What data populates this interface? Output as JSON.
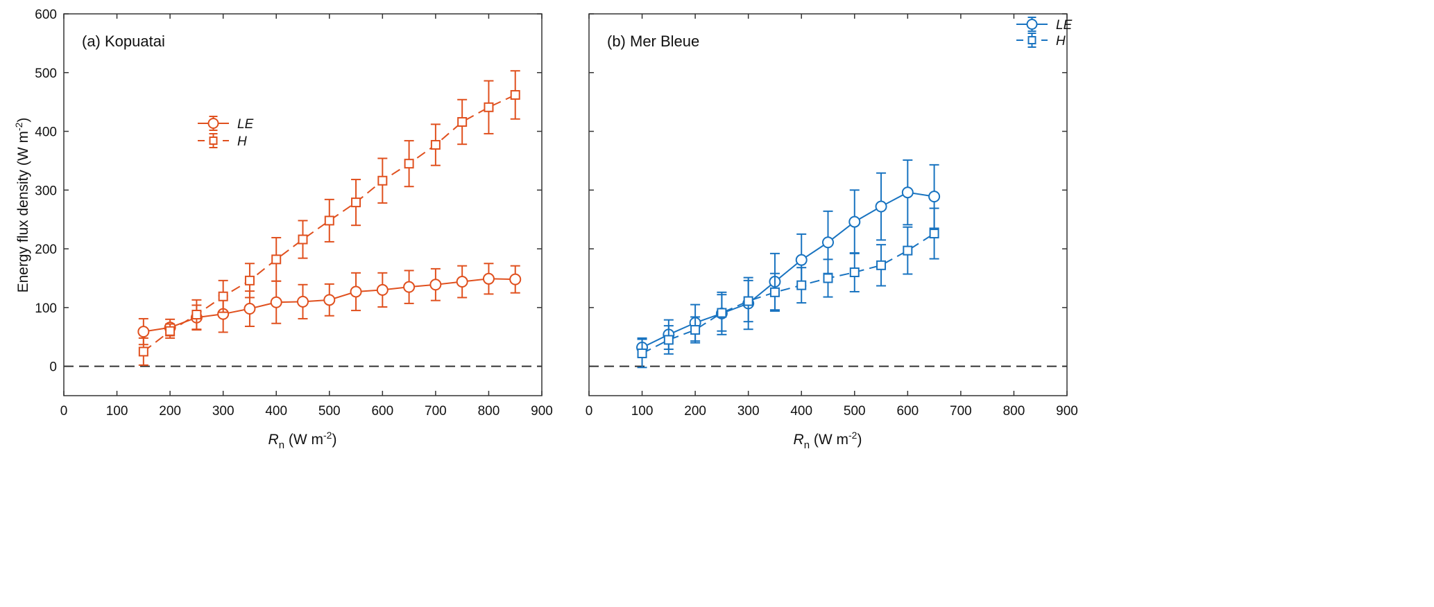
{
  "colors": {
    "kopuatai": "#e0501e",
    "merbleue": "#1873c0",
    "axis": "#333333"
  },
  "y_axis_label": "Energy flux density (W m",
  "y_axis_label_sup": "-2",
  "y_axis_label_end": ")",
  "chart_data": [
    {
      "type": "line",
      "title": "(a) Kopuatai",
      "xlabel_main": "R",
      "xlabel_sub": "n",
      "xlabel_units": " (W m",
      "xlabel_sup": "-2",
      "xlabel_end": ")",
      "xlim": [
        0,
        900
      ],
      "ylim": [
        -50,
        600
      ],
      "xticks": [
        0,
        100,
        200,
        300,
        400,
        500,
        600,
        700,
        800,
        900
      ],
      "yticks": [
        0,
        100,
        200,
        300,
        400,
        500,
        600
      ],
      "reference_line_y": 0,
      "legend_position": "upper-center",
      "series": [
        {
          "name": "LE",
          "marker": "circle",
          "linestyle": "solid",
          "x": [
            150,
            200,
            250,
            300,
            350,
            400,
            450,
            500,
            550,
            600,
            650,
            700,
            750,
            800,
            850
          ],
          "y": [
            59,
            66,
            83,
            89,
            98,
            109,
            110,
            113,
            127,
            130,
            135,
            139,
            144,
            149,
            148
          ],
          "err": [
            22,
            14,
            21,
            31,
            30,
            36,
            29,
            27,
            32,
            29,
            28,
            27,
            27,
            26,
            23
          ]
        },
        {
          "name": "H",
          "marker": "square",
          "linestyle": "dashed",
          "x": [
            150,
            200,
            250,
            300,
            350,
            400,
            450,
            500,
            550,
            600,
            650,
            700,
            750,
            800,
            850
          ],
          "y": [
            25,
            60,
            88,
            119,
            146,
            182,
            216,
            248,
            279,
            316,
            345,
            377,
            416,
            441,
            462
          ],
          "err": [
            23,
            12,
            25,
            27,
            29,
            37,
            32,
            36,
            39,
            38,
            39,
            35,
            38,
            45,
            41
          ]
        }
      ]
    },
    {
      "type": "line",
      "title": "(b) Mer Bleue",
      "xlabel_main": "R",
      "xlabel_sub": "n",
      "xlabel_units": " (W m",
      "xlabel_sup": "-2",
      "xlabel_end": ")",
      "xlim": [
        0,
        900
      ],
      "ylim": [
        -50,
        600
      ],
      "xticks": [
        0,
        100,
        200,
        300,
        400,
        500,
        600,
        700,
        800,
        900
      ],
      "yticks": [
        0,
        100,
        200,
        300,
        400,
        500,
        600
      ],
      "reference_line_y": 0,
      "legend_position": "top-right",
      "series": [
        {
          "name": "LE",
          "marker": "circle",
          "linestyle": "solid",
          "x": [
            100,
            150,
            200,
            250,
            300,
            350,
            400,
            450,
            500,
            550,
            600,
            650
          ],
          "y": [
            32,
            54,
            74,
            90,
            107,
            144,
            181,
            211,
            246,
            272,
            296,
            289
          ],
          "err": [
            16,
            25,
            31,
            36,
            44,
            48,
            44,
            53,
            54,
            57,
            55,
            54
          ]
        },
        {
          "name": "H",
          "marker": "square",
          "linestyle": "dashed",
          "x": [
            100,
            150,
            200,
            250,
            300,
            350,
            400,
            450,
            500,
            550,
            600,
            650
          ],
          "y": [
            22,
            45,
            62,
            91,
            111,
            126,
            138,
            150,
            160,
            172,
            197,
            226
          ],
          "err": [
            24,
            24,
            22,
            31,
            35,
            32,
            30,
            32,
            33,
            35,
            40,
            43
          ]
        }
      ]
    }
  ]
}
